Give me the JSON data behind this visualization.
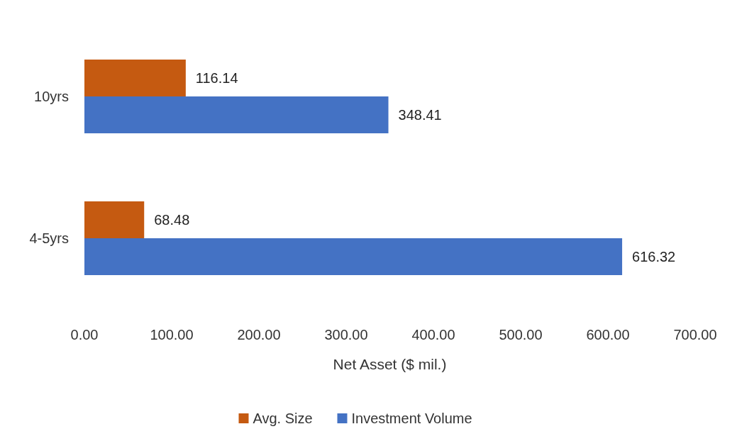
{
  "chart_data": {
    "type": "bar",
    "orientation": "horizontal",
    "xlabel": "Net Asset ($ mil.)",
    "categories": [
      "10yrs",
      "4-5yrs"
    ],
    "series": [
      {
        "name": "Avg. Size",
        "color": "#c55a11",
        "values": [
          116.14,
          68.48
        ]
      },
      {
        "name": "Investment Volume",
        "color": "#4472c4",
        "values": [
          348.41,
          616.32
        ]
      }
    ],
    "xlim": [
      0,
      700
    ],
    "xticks": [
      {
        "value": 0,
        "label": "0.00"
      },
      {
        "value": 100,
        "label": "100.00"
      },
      {
        "value": 200,
        "label": "200.00"
      },
      {
        "value": 300,
        "label": "300.00"
      },
      {
        "value": 400,
        "label": "400.00"
      },
      {
        "value": 500,
        "label": "500.00"
      },
      {
        "value": 600,
        "label": "600.00"
      },
      {
        "value": 700,
        "label": "700.00"
      }
    ],
    "data_labels": true,
    "legend": "bottom"
  }
}
